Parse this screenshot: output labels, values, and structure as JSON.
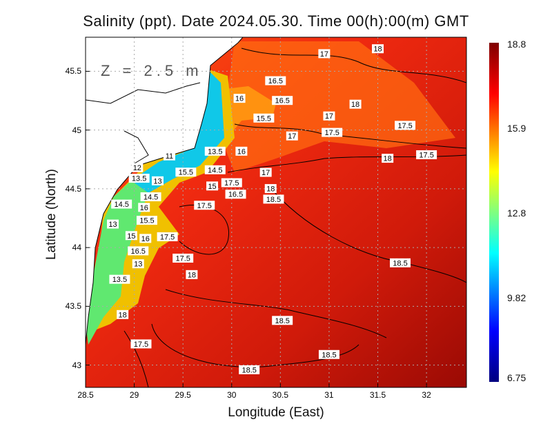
{
  "title": "Salinity (ppt). Date 2024.05.30. Time 00(h):00(m) GMT",
  "depth_label": "Z = 2.5 m",
  "chart_data": {
    "type": "heatmap",
    "variable": "Salinity (ppt)",
    "xlabel": "Longitude (East)",
    "ylabel": "Latitude (North)",
    "xlim": [
      28.5,
      32.41
    ],
    "ylim": [
      42.81,
      45.79
    ],
    "x_ticks": [
      "28.5",
      "29",
      "29.5",
      "30",
      "30.5",
      "31",
      "31.5",
      "32"
    ],
    "y_ticks": [
      "43",
      "43.5",
      "44",
      "44.5",
      "45",
      "45.5"
    ],
    "grid": true,
    "colorbar": {
      "min": 6.75,
      "max": 18.8,
      "tick_labels": [
        "18.8",
        "15.9",
        "12.8",
        "9.82",
        "6.75"
      ],
      "colormap": [
        "#00007f",
        "#0000ff",
        "#00ffff",
        "#ffff00",
        "#ff0000",
        "#7f0000"
      ]
    },
    "contour_labels": [
      {
        "value": "18",
        "lon": 31.5,
        "lat": 45.78
      },
      {
        "value": "17",
        "lon": 30.95,
        "lat": 45.65
      },
      {
        "value": "16.5",
        "lon": 30.45,
        "lat": 45.42
      },
      {
        "value": "16.5",
        "lon": 30.52,
        "lat": 45.34
      },
      {
        "value": "16",
        "lon": 30.08,
        "lat": 45.27
      },
      {
        "value": "15.5",
        "lon": 30.33,
        "lat": 45.19
      },
      {
        "value": "18",
        "lon": 31.27,
        "lat": 45.22
      },
      {
        "value": "17",
        "lon": 31.0,
        "lat": 45.12
      },
      {
        "value": "17.5",
        "lon": 31.78,
        "lat": 45.04
      },
      {
        "value": "17.5",
        "lon": 31.03,
        "lat": 44.98
      },
      {
        "value": "17",
        "lon": 30.62,
        "lat": 44.95
      },
      {
        "value": "13.5",
        "lon": 29.83,
        "lat": 44.82
      },
      {
        "value": "16",
        "lon": 30.1,
        "lat": 44.82
      },
      {
        "value": "14.5",
        "lon": 29.83,
        "lat": 44.75
      },
      {
        "value": "17.5",
        "lon": 32.0,
        "lat": 44.79
      },
      {
        "value": "18",
        "lon": 31.6,
        "lat": 44.76
      },
      {
        "value": "11",
        "lon": 29.36,
        "lat": 44.78
      },
      {
        "value": "15.5",
        "lon": 29.65,
        "lat": 44.73
      },
      {
        "value": "15",
        "lon": 29.8,
        "lat": 44.7
      },
      {
        "value": "12",
        "lon": 29.03,
        "lat": 44.68
      },
      {
        "value": "16.5",
        "lon": 29.8,
        "lat": 44.63
      },
      {
        "value": "17.5",
        "lon": 30.0,
        "lat": 44.64
      },
      {
        "value": "17",
        "lon": 30.35,
        "lat": 44.64
      },
      {
        "value": "18",
        "lon": 30.4,
        "lat": 44.59
      },
      {
        "value": "13.5",
        "lon": 29.05,
        "lat": 44.59
      },
      {
        "value": "14.5",
        "lon": 29.17,
        "lat": 44.52
      },
      {
        "value": "13",
        "lon": 29.24,
        "lat": 44.48
      },
      {
        "value": "18.5",
        "lon": 30.43,
        "lat": 44.5
      },
      {
        "value": "16",
        "lon": 29.1,
        "lat": 44.43
      },
      {
        "value": "14.5",
        "lon": 28.99,
        "lat": 44.37
      },
      {
        "value": "15.5",
        "lon": 29.13,
        "lat": 44.32
      },
      {
        "value": "17.5",
        "lon": 29.72,
        "lat": 44.36
      },
      {
        "value": "13",
        "lon": 28.78,
        "lat": 44.2
      },
      {
        "value": "15",
        "lon": 28.97,
        "lat": 44.19
      },
      {
        "value": "17.5",
        "lon": 29.34,
        "lat": 44.18
      },
      {
        "value": "16.5",
        "lon": 29.04,
        "lat": 44.06
      },
      {
        "value": "16",
        "lon": 29.04,
        "lat": 43.99
      },
      {
        "value": "13",
        "lon": 29.04,
        "lat": 43.95
      },
      {
        "value": "17.5",
        "lon": 29.5,
        "lat": 43.91
      },
      {
        "value": "18",
        "lon": 29.59,
        "lat": 43.77
      },
      {
        "value": "18.5",
        "lon": 31.73,
        "lat": 43.87
      },
      {
        "value": "13.5",
        "lon": 28.85,
        "lat": 43.73
      },
      {
        "value": "18",
        "lon": 28.88,
        "lat": 43.43
      },
      {
        "value": "18.5",
        "lon": 30.52,
        "lat": 43.38
      },
      {
        "value": "17.5",
        "lon": 29.07,
        "lat": 43.18
      },
      {
        "value": "18.5",
        "lon": 31.0,
        "lat": 43.09
      },
      {
        "value": "18.5",
        "lon": 30.18,
        "lat": 42.96
      }
    ]
  }
}
